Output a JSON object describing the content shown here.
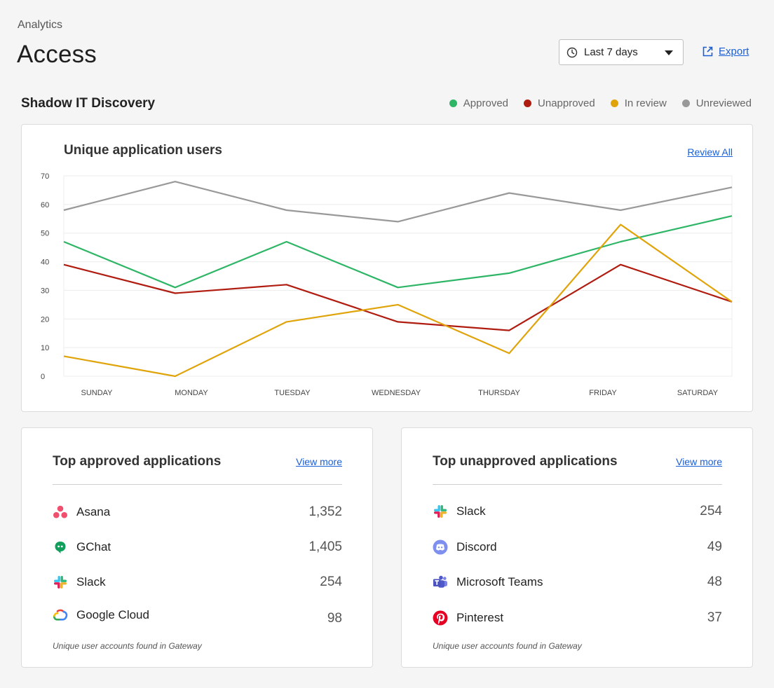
{
  "header": {
    "breadcrumb": "Analytics",
    "title": "Access",
    "date_range": {
      "icon": "clock-icon",
      "value": "Last 7 days"
    },
    "export_label": "Export"
  },
  "section": {
    "title": "Shadow IT Discovery",
    "legend": [
      {
        "label": "Approved",
        "color": "#2eb566"
      },
      {
        "label": "Unapproved",
        "color": "#b01c10"
      },
      {
        "label": "In review",
        "color": "#e0a40a"
      },
      {
        "label": "Unreviewed",
        "color": "#999999"
      }
    ]
  },
  "chart_card": {
    "title": "Unique application users",
    "review_label": "Review All"
  },
  "chart_data": {
    "type": "line",
    "title": "Unique application users",
    "xlabel": "",
    "ylabel": "",
    "x": [
      "SUNDAY",
      "MONDAY",
      "TUESDAY",
      "WEDNESDAY",
      "THURSDAY",
      "FRIDAY",
      "SATURDAY"
    ],
    "ylim": [
      0,
      70
    ],
    "yticks": [
      0,
      10,
      20,
      30,
      40,
      50,
      60,
      70
    ],
    "grid": true,
    "series": [
      {
        "name": "Approved",
        "color": "#2eb566",
        "values": [
          47,
          31,
          47,
          31,
          36,
          47,
          56
        ]
      },
      {
        "name": "Unapproved",
        "color": "#b01c10",
        "values": [
          39,
          29,
          32,
          19,
          16,
          39,
          26
        ]
      },
      {
        "name": "In review",
        "color": "#e0a40a",
        "values": [
          7,
          0,
          19,
          25,
          8,
          53,
          26
        ]
      },
      {
        "name": "Unreviewed",
        "color": "#999999",
        "values": [
          58,
          68,
          58,
          54,
          64,
          58,
          66
        ]
      }
    ]
  },
  "approved": {
    "title": "Top approved applications",
    "view_more": "View more",
    "items": [
      {
        "name": "Asana",
        "count": "1,352",
        "icon": "asana-icon"
      },
      {
        "name": "GChat",
        "count": "1,405",
        "icon": "gchat-icon"
      },
      {
        "name": "Slack",
        "count": "254",
        "icon": "slack-icon"
      },
      {
        "name": "Google Cloud",
        "count": "98",
        "icon": "google-cloud-icon"
      }
    ],
    "footnote": "Unique user accounts found in Gateway"
  },
  "unapproved": {
    "title": "Top unapproved applications",
    "view_more": "View more",
    "items": [
      {
        "name": "Slack",
        "count": "254",
        "icon": "slack-icon"
      },
      {
        "name": "Discord",
        "count": "49",
        "icon": "discord-icon"
      },
      {
        "name": "Microsoft Teams",
        "count": "48",
        "icon": "microsoft-teams-icon"
      },
      {
        "name": "Pinterest",
        "count": "37",
        "icon": "pinterest-icon"
      }
    ],
    "footnote": "Unique user accounts found in Gateway"
  }
}
